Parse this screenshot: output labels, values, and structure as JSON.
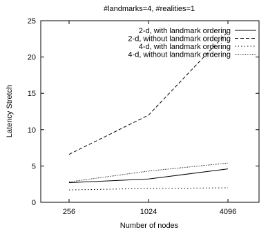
{
  "chart_data": {
    "type": "line",
    "title": "#landmarks=4, #realities=1",
    "xlabel": "Number of nodes",
    "ylabel": "Latency Stretch",
    "x": [
      256,
      1024,
      4096
    ],
    "xticks": [
      "256",
      "1024",
      "4096"
    ],
    "yticks": [
      0,
      5,
      10,
      15,
      20,
      25
    ],
    "ylim": [
      0,
      25
    ],
    "x_scale": "log2",
    "grid": false,
    "legend_position": "top-right",
    "series": [
      {
        "name": "2-d, with landmark ordering",
        "style": "solid",
        "values": [
          2.7,
          3.2,
          4.6
        ]
      },
      {
        "name": "2-d, without landmark ordering",
        "style": "dashed",
        "values": [
          6.6,
          12.0,
          23.5
        ]
      },
      {
        "name": "4-d, with landmark ordering",
        "style": "dotted",
        "values": [
          1.7,
          1.9,
          2.0
        ]
      },
      {
        "name": "4-d, without landmark ordering",
        "style": "dense-dotted",
        "values": [
          2.8,
          4.3,
          5.4
        ]
      }
    ]
  }
}
